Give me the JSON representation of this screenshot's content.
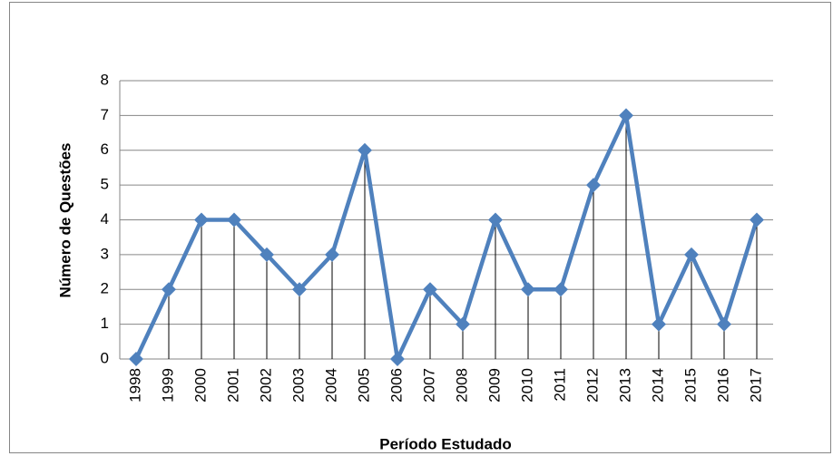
{
  "chart_data": {
    "type": "line",
    "categories": [
      "1998",
      "1999",
      "2000",
      "2001",
      "2002",
      "2003",
      "2004",
      "2005",
      "2006",
      "2007",
      "2008",
      "2009",
      "2010",
      "2011",
      "2012",
      "2013",
      "2014",
      "2015",
      "2016",
      "2017"
    ],
    "series": [
      {
        "name": "Número de Questões",
        "color": "#4f81bd",
        "values": [
          0,
          2,
          4,
          4,
          3,
          2,
          3,
          6,
          0,
          2,
          1,
          4,
          2,
          2,
          5,
          7,
          1,
          3,
          1,
          4
        ]
      }
    ],
    "ylim": [
      0,
      8
    ],
    "yticks": [
      0,
      1,
      2,
      3,
      4,
      5,
      6,
      7,
      8
    ],
    "grid": true,
    "drop_lines": true,
    "marker": "diamond",
    "x_label": "Período Estudado",
    "y_label": "Número de Questões"
  }
}
